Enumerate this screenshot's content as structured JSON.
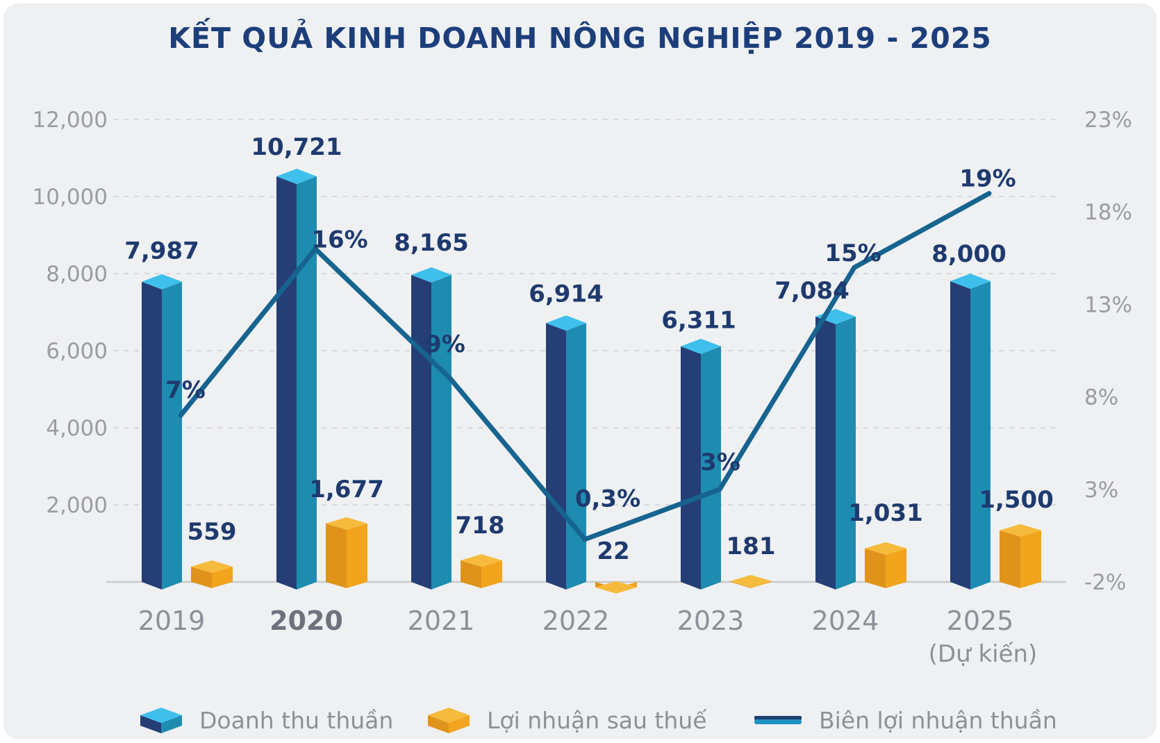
{
  "title": "KẾT QUẢ KINH DOANH NÔNG NGHIỆP 2019 - 2025",
  "legend": {
    "items": [
      {
        "id": "revenue",
        "label": "Doanh thu thuần",
        "swatch": "cube-blue"
      },
      {
        "id": "profit",
        "label": "Lợi nhuận sau thuế",
        "swatch": "cube-orange"
      },
      {
        "id": "margin",
        "label": "Biên lợi nhuận thuần",
        "swatch": "line-blue"
      }
    ]
  },
  "colors": {
    "panel_background": "#eef0f2",
    "title_text": "#1c3e7a",
    "data_label_text": "#1e3a6e",
    "bar_blue_left": "#253e75",
    "bar_blue_right": "#1e8cb0",
    "bar_blue_top": "#3fc0ec",
    "bar_orange_left": "#e0931a",
    "bar_orange_right": "#f2a41d",
    "bar_orange_top": "#f6bb3c",
    "line": "#16648f",
    "axis_tick_text": "#9b9ca0",
    "year_text": "#8c9097",
    "year_emphasized_text": "#6d727c",
    "gridline": "#d7d8da",
    "baseline": "#c8cacc",
    "legend_text": "#8e9095"
  },
  "chart_data": {
    "type": "bar+line combo",
    "title": "KẾT QUẢ KINH DOANH NÔNG NGHIỆP 2019 - 2025",
    "categories": [
      "2019",
      "2020",
      "2021",
      "2022",
      "2023",
      "2024",
      "2025"
    ],
    "category_note": "(Dự kiến)",
    "category_note_index": 6,
    "emphasized_category": "2020",
    "series": [
      {
        "name": "Doanh thu thuần",
        "type": "bar",
        "axis": "left",
        "values": [
          7987,
          10721,
          8165,
          6914,
          6311,
          7084,
          8000
        ],
        "labels": [
          "7,987",
          "10,721",
          "8,165",
          "6,914",
          "6,311",
          "7,084",
          "8,000"
        ],
        "color": "#1e8cb0"
      },
      {
        "name": "Lợi nhuận sau thuế",
        "type": "bar",
        "axis": "left",
        "values": [
          559,
          1677,
          718,
          22,
          181,
          1031,
          1500
        ],
        "labels": [
          "559",
          "1,677",
          "718",
          "22",
          "181",
          "1,031",
          "1,500"
        ],
        "color": "#f2a41d"
      },
      {
        "name": "Biên lợi nhuận thuần",
        "type": "line",
        "axis": "right",
        "values": [
          7,
          16,
          9,
          0.3,
          3,
          15,
          19
        ],
        "labels": [
          "7%",
          "16%",
          "9%",
          "0,3%",
          "3%",
          "15%",
          "19%"
        ],
        "color": "#16648f"
      }
    ],
    "left_axis": {
      "ticks": [
        "12,000",
        "10,000",
        "8,000",
        "6,000",
        "4,000",
        "2,000"
      ],
      "min": 0,
      "max": 12000
    },
    "right_axis": {
      "ticks": [
        "23%",
        "18%",
        "13%",
        "8%",
        "3%",
        "-2%"
      ],
      "min": -2,
      "max": 23
    },
    "grid": {
      "horizontal": true,
      "style": "dashed"
    },
    "legend_position": "bottom"
  }
}
